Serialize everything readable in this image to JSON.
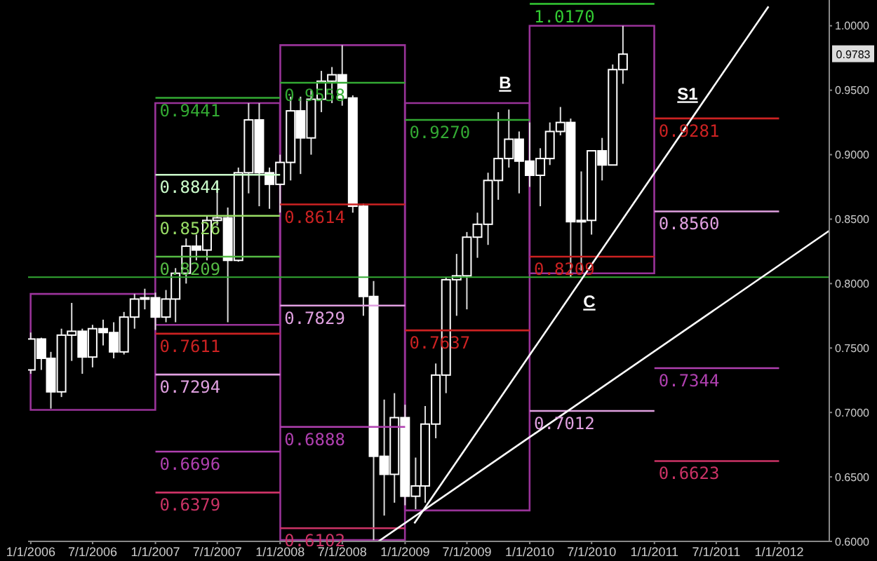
{
  "chart_data": {
    "type": "candlestick",
    "x": [
      "2006-01",
      "2006-02",
      "2006-03",
      "2006-04",
      "2006-05",
      "2006-06",
      "2006-07",
      "2006-08",
      "2006-09",
      "2006-10",
      "2006-11",
      "2006-12",
      "2007-01",
      "2007-02",
      "2007-03",
      "2007-04",
      "2007-05",
      "2007-06",
      "2007-07",
      "2007-08",
      "2007-09",
      "2007-10",
      "2007-11",
      "2007-12",
      "2008-01",
      "2008-02",
      "2008-03",
      "2008-04",
      "2008-05",
      "2008-06",
      "2008-07",
      "2008-08",
      "2008-09",
      "2008-10",
      "2008-11",
      "2008-12",
      "2009-01",
      "2009-02",
      "2009-03",
      "2009-04",
      "2009-05",
      "2009-06",
      "2009-07",
      "2009-08",
      "2009-09",
      "2009-10",
      "2009-11",
      "2009-12",
      "2010-01",
      "2010-02",
      "2010-03",
      "2010-04",
      "2010-05",
      "2010-06",
      "2010-07",
      "2010-08",
      "2010-09",
      "2010-10"
    ],
    "ohlc": [
      [
        0.733,
        0.762,
        0.73,
        0.757
      ],
      [
        0.757,
        0.758,
        0.733,
        0.742
      ],
      [
        0.742,
        0.747,
        0.703,
        0.716
      ],
      [
        0.716,
        0.765,
        0.712,
        0.76
      ],
      [
        0.76,
        0.785,
        0.74,
        0.763
      ],
      [
        0.763,
        0.765,
        0.73,
        0.743
      ],
      [
        0.743,
        0.768,
        0.735,
        0.765
      ],
      [
        0.765,
        0.772,
        0.752,
        0.762
      ],
      [
        0.762,
        0.77,
        0.742,
        0.747
      ],
      [
        0.747,
        0.778,
        0.745,
        0.774
      ],
      [
        0.774,
        0.792,
        0.765,
        0.788
      ],
      [
        0.788,
        0.796,
        0.78,
        0.789
      ],
      [
        0.789,
        0.793,
        0.764,
        0.774
      ],
      [
        0.774,
        0.795,
        0.77,
        0.788
      ],
      [
        0.788,
        0.812,
        0.77,
        0.808
      ],
      [
        0.808,
        0.835,
        0.8,
        0.829
      ],
      [
        0.829,
        0.838,
        0.818,
        0.826
      ],
      [
        0.826,
        0.852,
        0.818,
        0.849
      ],
      [
        0.849,
        0.88,
        0.845,
        0.851
      ],
      [
        0.851,
        0.859,
        0.77,
        0.818
      ],
      [
        0.818,
        0.89,
        0.817,
        0.886
      ],
      [
        0.886,
        0.94,
        0.87,
        0.927
      ],
      [
        0.927,
        0.94,
        0.86,
        0.886
      ],
      [
        0.886,
        0.89,
        0.858,
        0.877
      ],
      [
        0.877,
        0.9,
        0.855,
        0.894
      ],
      [
        0.894,
        0.945,
        0.88,
        0.934
      ],
      [
        0.934,
        0.945,
        0.885,
        0.913
      ],
      [
        0.913,
        0.95,
        0.9,
        0.943
      ],
      [
        0.943,
        0.965,
        0.933,
        0.957
      ],
      [
        0.957,
        0.968,
        0.94,
        0.962
      ],
      [
        0.962,
        0.985,
        0.938,
        0.944
      ],
      [
        0.944,
        0.946,
        0.855,
        0.86
      ],
      [
        0.86,
        0.862,
        0.775,
        0.79
      ],
      [
        0.79,
        0.802,
        0.601,
        0.666
      ],
      [
        0.666,
        0.71,
        0.62,
        0.652
      ],
      [
        0.652,
        0.715,
        0.63,
        0.696
      ],
      [
        0.696,
        0.706,
        0.628,
        0.635
      ],
      [
        0.635,
        0.665,
        0.625,
        0.643
      ],
      [
        0.643,
        0.705,
        0.63,
        0.691
      ],
      [
        0.691,
        0.738,
        0.68,
        0.729
      ],
      [
        0.729,
        0.805,
        0.715,
        0.803
      ],
      [
        0.803,
        0.823,
        0.775,
        0.806
      ],
      [
        0.806,
        0.84,
        0.78,
        0.836
      ],
      [
        0.836,
        0.855,
        0.82,
        0.846
      ],
      [
        0.846,
        0.886,
        0.83,
        0.88
      ],
      [
        0.88,
        0.933,
        0.865,
        0.897
      ],
      [
        0.897,
        0.935,
        0.89,
        0.912
      ],
      [
        0.912,
        0.918,
        0.87,
        0.895
      ],
      [
        0.895,
        0.925,
        0.875,
        0.884
      ],
      [
        0.884,
        0.905,
        0.86,
        0.897
      ],
      [
        0.897,
        0.925,
        0.892,
        0.918
      ],
      [
        0.918,
        0.937,
        0.915,
        0.925
      ],
      [
        0.925,
        0.928,
        0.805,
        0.848
      ],
      [
        0.848,
        0.887,
        0.81,
        0.849
      ],
      [
        0.849,
        0.903,
        0.838,
        0.903
      ],
      [
        0.903,
        0.913,
        0.88,
        0.892
      ],
      [
        0.892,
        0.97,
        0.892,
        0.966
      ],
      [
        0.966,
        1.0,
        0.955,
        0.978
      ]
    ],
    "xlim": [
      "2005-12-24",
      "2012-05-27"
    ],
    "xticks": [
      {
        "value": "2006-01-01",
        "label": "1/1/2006"
      },
      {
        "value": "2006-07-01",
        "label": "7/1/2006"
      },
      {
        "value": "2007-01-01",
        "label": "1/1/2007"
      },
      {
        "value": "2007-07-01",
        "label": "7/1/2007"
      },
      {
        "value": "2008-01-01",
        "label": "1/1/2008"
      },
      {
        "value": "2008-07-01",
        "label": "7/1/2008"
      },
      {
        "value": "2009-01-01",
        "label": "1/1/2009"
      },
      {
        "value": "2009-07-01",
        "label": "7/1/2009"
      },
      {
        "value": "2010-01-01",
        "label": "1/1/2010"
      },
      {
        "value": "2010-07-01",
        "label": "7/1/2010"
      },
      {
        "value": "2011-01-01",
        "label": "1/1/2011"
      },
      {
        "value": "2011-07-01",
        "label": "7/1/2011"
      },
      {
        "value": "2012-01-01",
        "label": "1/1/2012"
      }
    ],
    "ylim": [
      0.6,
      1.02
    ],
    "yticks": [
      {
        "value": 0.6,
        "label": "0.6000"
      },
      {
        "value": 0.65,
        "label": "0.6500"
      },
      {
        "value": 0.7,
        "label": "0.7000"
      },
      {
        "value": 0.75,
        "label": "0.7500"
      },
      {
        "value": 0.8,
        "label": "0.8000"
      },
      {
        "value": 0.85,
        "label": "0.8500"
      },
      {
        "value": 0.9,
        "label": "0.9000"
      },
      {
        "value": 0.95,
        "label": "0.9500"
      },
      {
        "value": 1.0,
        "label": "1.0000"
      }
    ],
    "series": [
      {
        "type": "bar",
        "color": "#993399",
        "x": [
          "2006-07-02",
          "2007-07-02",
          "2008-07-02",
          "2009-07-02",
          "2010-07-02"
        ],
        "base": [
          0.702,
          0.768,
          0.601,
          0.624,
          0.808
        ],
        "values": [
          0.09,
          0.172,
          0.384,
          0.316,
          0.192
        ]
      },
      {
        "type": "line",
        "color": "#33aa33",
        "x": [
          "2007-01",
          "2008-01"
        ],
        "values": [
          0.9441,
          0.9441
        ],
        "value_labels": [
          "0.9441",
          null
        ]
      },
      {
        "type": "line",
        "color": "#ccffcc",
        "x": [
          "2007-01",
          "2008-01"
        ],
        "values": [
          0.8844,
          0.8844
        ],
        "value_labels": [
          "0.8844",
          null
        ]
      },
      {
        "type": "line",
        "color": "#99dd66",
        "x": [
          "2007-01",
          "2008-01"
        ],
        "values": [
          0.8526,
          0.8526
        ],
        "value_labels": [
          "0.8526",
          null
        ]
      },
      {
        "type": "line",
        "color": "#55bb44",
        "x": [
          "2007-01",
          "2008-01"
        ],
        "values": [
          0.8209,
          0.8209
        ],
        "value_labels": [
          "0.8209",
          null
        ]
      },
      {
        "type": "line",
        "color": "#cc2222",
        "x": [
          "2007-01",
          "2008-01"
        ],
        "values": [
          0.7611,
          0.7611
        ],
        "value_labels": [
          "0.7611",
          null
        ]
      },
      {
        "type": "line",
        "color": "#e0a0e0",
        "x": [
          "2007-01",
          "2008-01"
        ],
        "values": [
          0.7294,
          0.7294
        ],
        "value_labels": [
          "0.7294",
          null
        ]
      },
      {
        "type": "line",
        "color": "#b040b0",
        "x": [
          "2007-01",
          "2008-01"
        ],
        "values": [
          0.6696,
          0.6696
        ],
        "value_labels": [
          "0.6696",
          null
        ]
      },
      {
        "type": "line",
        "color": "#cc3366",
        "x": [
          "2007-01",
          "2008-01"
        ],
        "values": [
          0.6379,
          0.6379
        ],
        "value_labels": [
          "0.6379",
          null
        ]
      },
      {
        "type": "line",
        "color": "#33aa33",
        "x": [
          "2008-01",
          "2009-01"
        ],
        "values": [
          0.9558,
          0.9558
        ],
        "value_labels": [
          "0.9558",
          null
        ]
      },
      {
        "type": "line",
        "color": "#cc2222",
        "x": [
          "2008-01",
          "2009-01"
        ],
        "values": [
          0.8614,
          0.8614
        ],
        "value_labels": [
          "0.8614",
          null
        ]
      },
      {
        "type": "line",
        "color": "#e0a0e0",
        "x": [
          "2008-01",
          "2009-01"
        ],
        "values": [
          0.7829,
          0.7829
        ],
        "value_labels": [
          "0.7829",
          null
        ]
      },
      {
        "type": "line",
        "color": "#b040b0",
        "x": [
          "2008-01",
          "2009-01"
        ],
        "values": [
          0.6888,
          0.6888
        ],
        "value_labels": [
          "0.6888",
          null
        ]
      },
      {
        "type": "line",
        "color": "#cc3366",
        "x": [
          "2008-01",
          "2009-01"
        ],
        "values": [
          0.6102,
          0.6102
        ],
        "value_labels": [
          "0.6102",
          null
        ]
      },
      {
        "type": "line",
        "color": "#33aa33",
        "x": [
          "2009-01",
          "2010-01"
        ],
        "values": [
          0.927,
          0.927
        ],
        "value_labels": [
          "0.9270",
          null
        ]
      },
      {
        "type": "line",
        "color": "#cc2222",
        "x": [
          "2009-01",
          "2010-01"
        ],
        "values": [
          0.7637,
          0.7637
        ],
        "value_labels": [
          "0.7637",
          null
        ]
      },
      {
        "type": "line",
        "color": "#33cc33",
        "x": [
          "2010-01",
          "2011-01"
        ],
        "values": [
          1.017,
          1.017
        ],
        "value_labels": [
          "1.0170",
          null
        ]
      },
      {
        "type": "line",
        "color": "#cc2222",
        "x": [
          "2010-01",
          "2011-01"
        ],
        "values": [
          0.8209,
          0.8209
        ],
        "value_labels": [
          "0.8209",
          null
        ]
      },
      {
        "type": "line",
        "color": "#e0a0e0",
        "x": [
          "2010-01",
          "2011-01"
        ],
        "values": [
          0.7012,
          0.7012
        ],
        "value_labels": [
          "0.7012",
          null
        ]
      },
      {
        "type": "line",
        "color": "#cc2222",
        "x": [
          "2011-01",
          "2012-01"
        ],
        "values": [
          0.9281,
          0.9281
        ],
        "value_labels": [
          "0.9281",
          null
        ]
      },
      {
        "type": "line",
        "color": "#e0a0e0",
        "x": [
          "2011-01",
          "2012-01"
        ],
        "values": [
          0.856,
          0.856
        ],
        "value_labels": [
          "0.8560",
          null
        ]
      },
      {
        "type": "line",
        "color": "#b040b0",
        "x": [
          "2011-01",
          "2012-01"
        ],
        "values": [
          0.7344,
          0.7344
        ],
        "value_labels": [
          "0.7344",
          null
        ]
      },
      {
        "type": "line",
        "color": "#cc3366",
        "x": [
          "2011-01",
          "2012-01"
        ],
        "values": [
          0.6623,
          0.6623
        ],
        "value_labels": [
          "0.6623",
          null
        ]
      },
      {
        "type": "line",
        "color": "#ffffff",
        "x": [
          "2009-01-28",
          "2011-12-01"
        ],
        "values": [
          0.614,
          1.015
        ]
      },
      {
        "type": "line",
        "color": "#ffffff",
        "x": [
          "2008-10-15",
          "2012-05-27"
        ],
        "values": [
          0.6,
          0.841
        ]
      }
    ],
    "ref_lines": [
      {
        "axis": "y",
        "value": 0.805,
        "color": "#33aa33"
      }
    ],
    "annotations": [
      "B",
      "C",
      "S1",
      {
        "text": "0.9783",
        "y": 0.9783
      }
    ]
  }
}
